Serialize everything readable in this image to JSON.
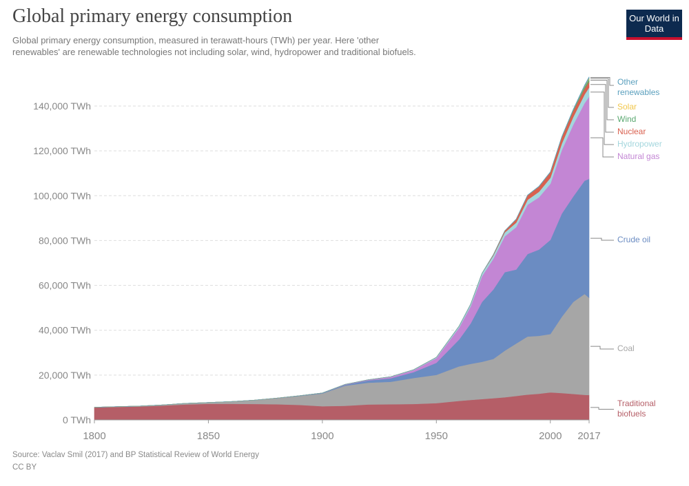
{
  "chart_data": {
    "type": "stacked_area",
    "title": "Global primary energy consumption",
    "subtitle": "Global primary energy consumption, measured in terawatt-hours (TWh) per year. Here 'other renewables' are renewable technologies not including solar, wind, hydropower and traditional biofuels.",
    "source": "Source: Vaclav Smil (2017) and BP Statistical Review of World Energy",
    "license": "CC BY",
    "logo": "Our World in Data",
    "x": [
      1800,
      1810,
      1820,
      1830,
      1840,
      1850,
      1860,
      1870,
      1880,
      1890,
      1900,
      1910,
      1920,
      1930,
      1940,
      1950,
      1960,
      1965,
      1970,
      1975,
      1980,
      1985,
      1990,
      1995,
      2000,
      2005,
      2010,
      2015,
      2017
    ],
    "xlim": [
      1800,
      2017
    ],
    "xticks": [
      1800,
      1850,
      1900,
      1950,
      2000,
      2017
    ],
    "ylim": [
      0,
      153500
    ],
    "yticks": [
      {
        "value": 0,
        "label": "0 TWh"
      },
      {
        "value": 20000,
        "label": "20,000 TWh"
      },
      {
        "value": 40000,
        "label": "40,000 TWh"
      },
      {
        "value": 60000,
        "label": "60,000 TWh"
      },
      {
        "value": 80000,
        "label": "80,000 TWh"
      },
      {
        "value": 100000,
        "label": "100,000 TWh"
      },
      {
        "value": 120000,
        "label": "120,000 TWh"
      },
      {
        "value": 140000,
        "label": "140,000 TWh"
      }
    ],
    "grid": true,
    "series": [
      {
        "name": "Traditional biofuels",
        "color": "#b55e67",
        "values": [
          5556,
          5800,
          6000,
          6400,
          6900,
          7200,
          7200,
          7100,
          7000,
          6700,
          6100,
          6300,
          6900,
          7000,
          7100,
          7500,
          8500,
          8900,
          9300,
          9700,
          10100,
          10700,
          11300,
          11700,
          12300,
          12000,
          11600,
          11200,
          11100
        ]
      },
      {
        "name": "Coal",
        "color": "#a6a6a6",
        "values": [
          97,
          130,
          200,
          300,
          500,
          570,
          1000,
          1700,
          2700,
          4000,
          5700,
          9000,
          9700,
          10000,
          11600,
          12600,
          15400,
          16100,
          16600,
          17500,
          20800,
          23400,
          25900,
          25800,
          26000,
          34000,
          41000,
          45000,
          43400
        ]
      },
      {
        "name": "Crude oil",
        "color": "#6b8cc2",
        "values": [
          0,
          0,
          0,
          0,
          0,
          0,
          0,
          6,
          50,
          100,
          180,
          380,
          1000,
          1600,
          2600,
          5400,
          12000,
          18000,
          26700,
          31000,
          35000,
          33000,
          36800,
          38500,
          42000,
          46000,
          47000,
          50500,
          53000
        ]
      },
      {
        "name": "Natural gas",
        "color": "#c386d4",
        "values": [
          0,
          0,
          0,
          0,
          0,
          0,
          0,
          0,
          0,
          0,
          60,
          150,
          250,
          550,
          900,
          2100,
          5300,
          7600,
          11500,
          13700,
          16000,
          18900,
          22000,
          23300,
          25000,
          28300,
          32000,
          34600,
          36700
        ]
      },
      {
        "name": "Hydropower",
        "color": "#a3d6dd",
        "values": [
          0,
          0,
          0,
          0,
          0,
          0,
          0,
          0,
          0,
          0,
          0,
          40,
          64,
          128,
          192,
          332,
          688,
          920,
          1175,
          1450,
          1720,
          1970,
          2150,
          2470,
          2650,
          2900,
          3420,
          3850,
          4060
        ]
      },
      {
        "name": "Nuclear",
        "color": "#d9604f",
        "values": [
          0,
          0,
          0,
          0,
          0,
          0,
          0,
          0,
          0,
          0,
          0,
          0,
          0,
          0,
          0,
          0,
          0,
          24,
          80,
          380,
          710,
          1500,
          2000,
          2300,
          2500,
          2770,
          2760,
          2570,
          2640
        ]
      },
      {
        "name": "Wind",
        "color": "#5aa870",
        "values": [
          0,
          0,
          0,
          0,
          0,
          0,
          0,
          0,
          0,
          0,
          0,
          0,
          0,
          0,
          0,
          0,
          0,
          0,
          0,
          0,
          0,
          0,
          4,
          8,
          31,
          104,
          342,
          831,
          1120
        ]
      },
      {
        "name": "Solar",
        "color": "#f1c64a",
        "values": [
          0,
          0,
          0,
          0,
          0,
          0,
          0,
          0,
          0,
          0,
          0,
          0,
          0,
          0,
          0,
          0,
          0,
          0,
          0,
          0,
          0,
          0,
          0,
          0,
          1,
          4,
          32,
          256,
          442
        ]
      },
      {
        "name": "Other renewables",
        "color": "#5a9fbd",
        "values": [
          0,
          0,
          0,
          0,
          0,
          0,
          0,
          0,
          0,
          0,
          0,
          0,
          0,
          0,
          0,
          0,
          0,
          20,
          30,
          40,
          60,
          110,
          130,
          160,
          180,
          220,
          330,
          480,
          560
        ]
      }
    ]
  }
}
